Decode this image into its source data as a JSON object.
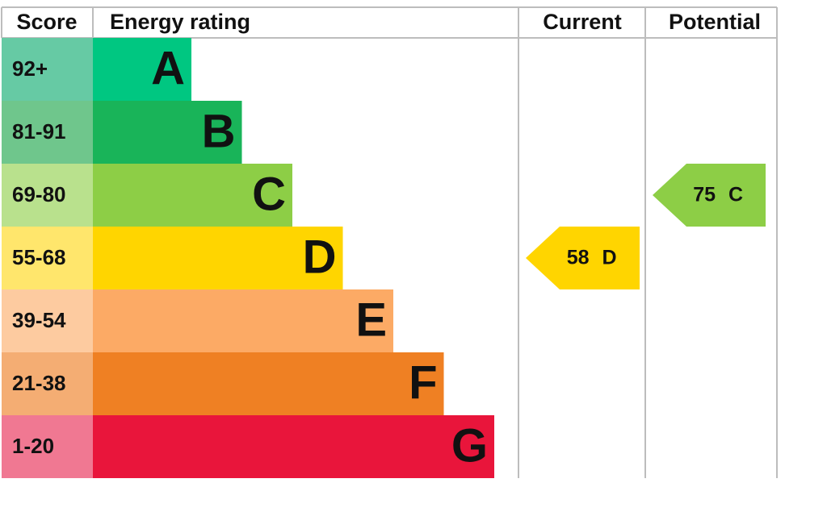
{
  "header": {
    "score": "Score",
    "rating": "Energy rating",
    "current": "Current",
    "potential": "Potential"
  },
  "bands": [
    {
      "range": "92+",
      "letter": "A",
      "color": "#00c781",
      "score_color": "#66caa4"
    },
    {
      "range": "81-91",
      "letter": "B",
      "color": "#19b459",
      "score_color": "#6fc68c"
    },
    {
      "range": "69-80",
      "letter": "C",
      "color": "#8dce46",
      "score_color": "#b9e18d"
    },
    {
      "range": "55-68",
      "letter": "D",
      "color": "#ffd500",
      "score_color": "#ffe66c"
    },
    {
      "range": "39-54",
      "letter": "E",
      "color": "#fcaa65",
      "score_color": "#fdcba0"
    },
    {
      "range": "21-38",
      "letter": "F",
      "color": "#ef8023",
      "score_color": "#f4ad73"
    },
    {
      "range": "1-20",
      "letter": "G",
      "color": "#e9153b",
      "score_color": "#f07892"
    }
  ],
  "current": {
    "value": 58,
    "letter": "D"
  },
  "potential": {
    "value": 75,
    "letter": "C"
  }
}
